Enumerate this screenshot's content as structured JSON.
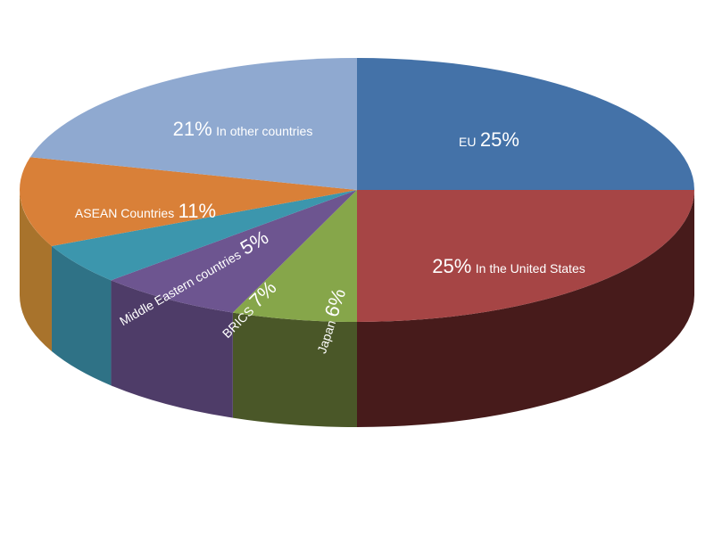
{
  "chart_data": {
    "type": "pie",
    "style": "3d",
    "slices": [
      {
        "key": "eu",
        "value": 25,
        "pct_text": "25%",
        "name": "EU",
        "color": "#4472a8",
        "side_color": "#2e5078"
      },
      {
        "key": "us",
        "value": 25,
        "pct_text": "25%",
        "name": "In the United States",
        "color": "#a64545",
        "side_color": "#471b1b"
      },
      {
        "key": "japan",
        "value": 6,
        "pct_text": "6%",
        "name": "Japan",
        "color": "#86a64a",
        "side_color": "#4a5728"
      },
      {
        "key": "brics",
        "value": 7,
        "pct_text": "7%",
        "name": "BRICS",
        "color": "#6d5590",
        "side_color": "#4e3c68"
      },
      {
        "key": "middle-east",
        "value": 5,
        "pct_text": "5%",
        "name": "Middle Eastern countries",
        "color": "#3c96ad",
        "side_color": "#2f7286"
      },
      {
        "key": "asean",
        "value": 11,
        "pct_text": "11%",
        "name": "ASEAN Countries",
        "color": "#d98038",
        "side_color": "#a8732c"
      },
      {
        "key": "other",
        "value": 21,
        "pct_text": "21%",
        "name": "In other countries",
        "color": "#8fa9d0",
        "side_color": "#6f86a8"
      }
    ]
  }
}
